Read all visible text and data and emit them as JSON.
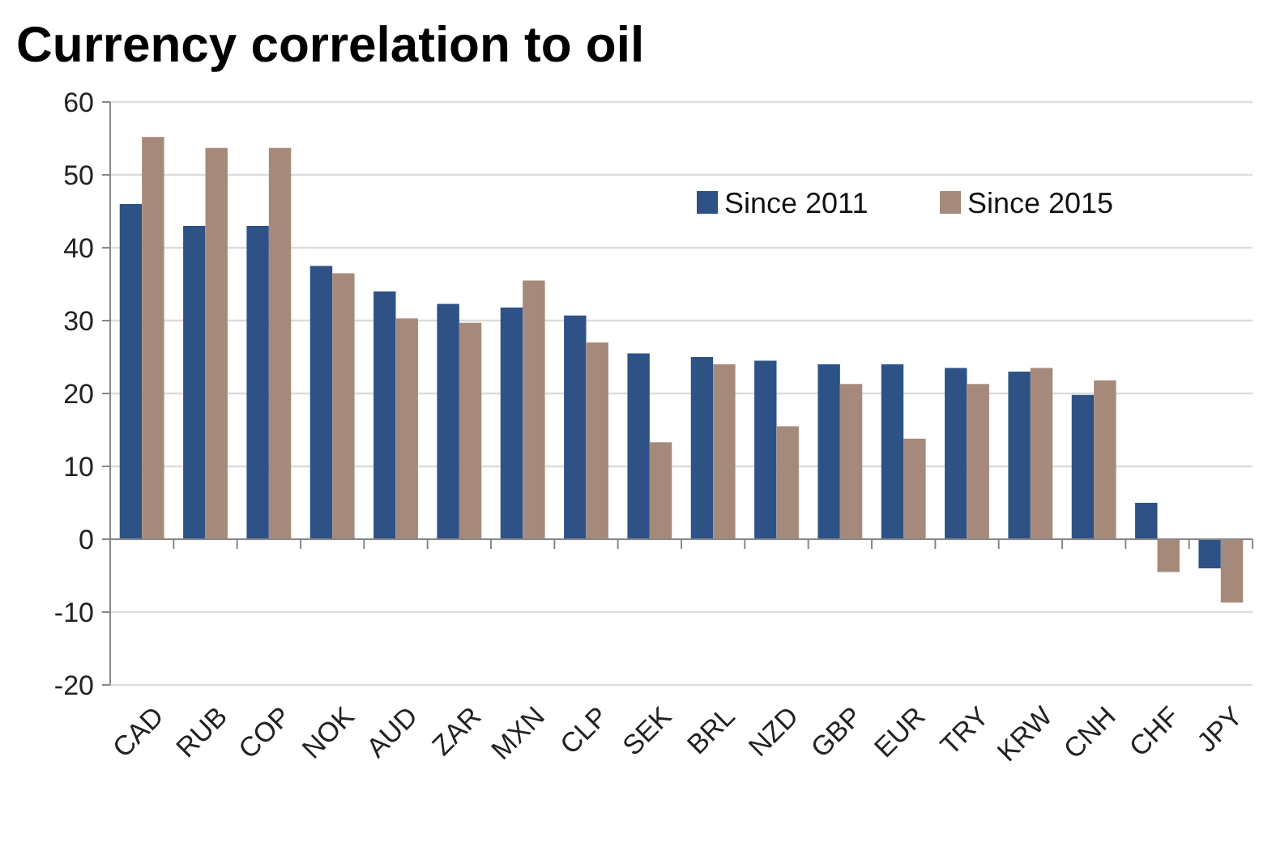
{
  "chart_data": {
    "type": "bar",
    "title": "Currency correlation to oil",
    "categories": [
      "CAD",
      "RUB",
      "COP",
      "NOK",
      "AUD",
      "ZAR",
      "MXN",
      "CLP",
      "SEK",
      "BRL",
      "NZD",
      "GBP",
      "EUR",
      "TRY",
      "KRW",
      "CNH",
      "CHF",
      "JPY"
    ],
    "series": [
      {
        "name": "Since 2011",
        "color": "#2e5286",
        "values": [
          46,
          43,
          43,
          37.5,
          34,
          32.3,
          31.8,
          30.7,
          25.5,
          25,
          24.5,
          24,
          24,
          23.5,
          23,
          19.8,
          5,
          -4
        ]
      },
      {
        "name": "Since 2015",
        "color": "#a58a7b",
        "values": [
          55.2,
          53.7,
          53.7,
          36.5,
          30.3,
          29.7,
          35.5,
          27,
          13.3,
          24,
          15.5,
          21.3,
          13.8,
          21.3,
          23.5,
          21.8,
          -4.5,
          -8.7
        ]
      }
    ],
    "ylim": [
      -20,
      60
    ],
    "yticks": [
      -20,
      -10,
      0,
      10,
      20,
      30,
      40,
      50,
      60
    ],
    "grid": "y",
    "legend": "top right"
  }
}
